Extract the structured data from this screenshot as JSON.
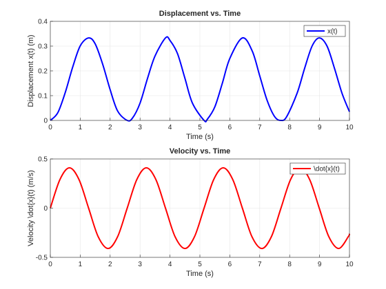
{
  "chart_data": [
    {
      "type": "line",
      "title": "Displacement vs. Time",
      "xlabel": "Time (s)",
      "ylabel": "Displacement x(t) (m)",
      "xlim": [
        0,
        10
      ],
      "ylim": [
        0,
        0.4
      ],
      "xticks": [
        "0",
        "1",
        "2",
        "3",
        "4",
        "5",
        "6",
        "7",
        "8",
        "9",
        "10"
      ],
      "yticks": [
        "0",
        "0.1",
        "0.2",
        "0.3",
        "0.4"
      ],
      "grid": true,
      "legend": {
        "placement": "top-right",
        "entries": [
          "x(t)"
        ]
      },
      "series": [
        {
          "name": "x(t)",
          "color": "#0000ff",
          "x": [
            0,
            0.25,
            0.5,
            0.75,
            1.0,
            1.28,
            1.5,
            1.75,
            2.0,
            2.25,
            2.57,
            2.75,
            3.0,
            3.25,
            3.5,
            3.85,
            4.0,
            4.25,
            4.5,
            4.75,
            5.14,
            5.25,
            5.5,
            5.75,
            6.0,
            6.42,
            6.75,
            7.0,
            7.25,
            7.5,
            7.71,
            7.9,
            8.25,
            8.5,
            8.75,
            8.99,
            9.25,
            9.5,
            9.75,
            10.0
          ],
          "y": [
            0,
            0.031,
            0.113,
            0.216,
            0.301,
            0.333,
            0.309,
            0.227,
            0.124,
            0.038,
            0,
            0.01,
            0.07,
            0.17,
            0.26,
            0.333,
            0.323,
            0.27,
            0.17,
            0.07,
            0,
            0.005,
            0.055,
            0.15,
            0.25,
            0.333,
            0.28,
            0.18,
            0.08,
            0.015,
            0,
            0.015,
            0.11,
            0.21,
            0.3,
            0.333,
            0.3,
            0.21,
            0.11,
            0.035
          ]
        }
      ]
    },
    {
      "type": "line",
      "title": "Velocity vs. Time",
      "xlabel": "Time (s)",
      "ylabel": "Velocity \\dot{x}(t) (m/s)",
      "xlim": [
        0,
        10
      ],
      "ylim": [
        -0.5,
        0.5
      ],
      "xticks": [
        "0",
        "1",
        "2",
        "3",
        "4",
        "5",
        "6",
        "7",
        "8",
        "9",
        "10"
      ],
      "yticks": [
        "-0.5",
        "0",
        "0.5"
      ],
      "grid": true,
      "legend": {
        "placement": "top-right",
        "entries": [
          "\\dot{x}(t)"
        ]
      },
      "series": [
        {
          "name": "\\dot{x}(t)",
          "color": "#ff0000",
          "x": [
            0,
            0.32,
            0.64,
            0.96,
            1.28,
            1.6,
            1.93,
            2.25,
            2.57,
            2.89,
            3.21,
            3.53,
            3.85,
            4.17,
            4.5,
            4.82,
            5.14,
            5.46,
            5.78,
            6.1,
            6.42,
            6.74,
            7.07,
            7.39,
            7.71,
            8.03,
            8.35,
            8.67,
            8.99,
            9.31,
            9.64,
            9.96,
            10.0
          ],
          "y": [
            0,
            0.29,
            0.41,
            0.29,
            0,
            -0.29,
            -0.41,
            -0.29,
            0,
            0.29,
            0.41,
            0.29,
            0,
            -0.29,
            -0.41,
            -0.29,
            0,
            0.29,
            0.41,
            0.29,
            0,
            -0.29,
            -0.41,
            -0.29,
            0,
            0.29,
            0.41,
            0.29,
            0,
            -0.29,
            -0.41,
            -0.29,
            -0.26
          ]
        }
      ]
    }
  ]
}
